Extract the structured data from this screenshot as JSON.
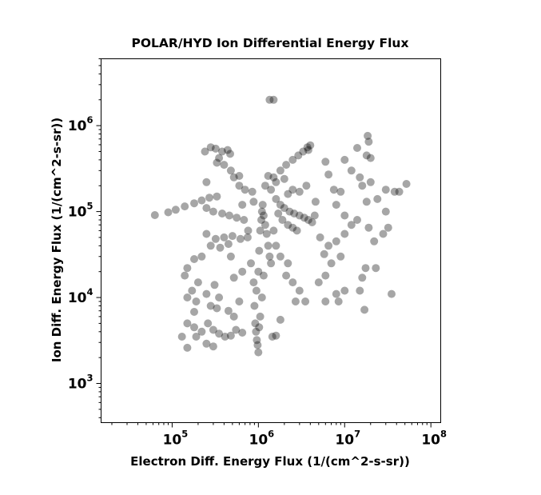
{
  "chart_data": {
    "type": "scatter",
    "title": "POLAR/HYD  Ion Differential Energy Flux",
    "xlabel": "Electron Diff. Energy Flux (1/(cm^2-s-sr))",
    "ylabel": "Ion Diff. Energy Flux (1/(cm^2-s-sr))",
    "x_scale": "log",
    "y_scale": "log",
    "xlim": [
      15000,
      130000000
    ],
    "ylim": [
      350,
      6000000
    ],
    "x_ticks": [
      {
        "base": "10",
        "exp": "5",
        "value": 100000
      },
      {
        "base": "10",
        "exp": "6",
        "value": 1000000
      },
      {
        "base": "10",
        "exp": "7",
        "value": 10000000
      },
      {
        "base": "10",
        "exp": "8",
        "value": 100000000
      }
    ],
    "y_ticks": [
      {
        "base": "10",
        "exp": "3",
        "value": 1000
      },
      {
        "base": "10",
        "exp": "4",
        "value": 10000
      },
      {
        "base": "10",
        "exp": "5",
        "value": 100000
      },
      {
        "base": "10",
        "exp": "6",
        "value": 1000000
      }
    ],
    "grid": false,
    "marker_color": "#000000",
    "marker_alpha": 0.35,
    "points": [
      [
        63000,
        91000
      ],
      [
        90000,
        98000
      ],
      [
        110000,
        105000
      ],
      [
        140000,
        115000
      ],
      [
        180000,
        125000
      ],
      [
        220000,
        135000
      ],
      [
        270000,
        145000
      ],
      [
        330000,
        150000
      ],
      [
        250000,
        110000
      ],
      [
        300000,
        100000
      ],
      [
        380000,
        95000
      ],
      [
        460000,
        90000
      ],
      [
        560000,
        85000
      ],
      [
        680000,
        80000
      ],
      [
        240000,
        500000
      ],
      [
        280000,
        560000
      ],
      [
        320000,
        540000
      ],
      [
        380000,
        500000
      ],
      [
        440000,
        520000
      ],
      [
        470000,
        470000
      ],
      [
        350000,
        420000
      ],
      [
        400000,
        350000
      ],
      [
        480000,
        300000
      ],
      [
        520000,
        250000
      ],
      [
        600000,
        200000
      ],
      [
        330000,
        370000
      ],
      [
        250000,
        220000
      ],
      [
        250000,
        55000
      ],
      [
        320000,
        48000
      ],
      [
        400000,
        50000
      ],
      [
        500000,
        52000
      ],
      [
        620000,
        48000
      ],
      [
        750000,
        50000
      ],
      [
        280000,
        40000
      ],
      [
        360000,
        38000
      ],
      [
        450000,
        42000
      ],
      [
        180000,
        28000
      ],
      [
        220000,
        30000
      ],
      [
        150000,
        22000
      ],
      [
        140000,
        18000
      ],
      [
        200000,
        15000
      ],
      [
        170000,
        12000
      ],
      [
        150000,
        10000
      ],
      [
        190000,
        9000
      ],
      [
        250000,
        11000
      ],
      [
        310000,
        14000
      ],
      [
        350000,
        10000
      ],
      [
        280000,
        8000
      ],
      [
        330000,
        7500
      ],
      [
        450000,
        7000
      ],
      [
        520000,
        6000
      ],
      [
        600000,
        9000
      ],
      [
        150000,
        5000
      ],
      [
        180000,
        4500
      ],
      [
        220000,
        4000
      ],
      [
        260000,
        5000
      ],
      [
        300000,
        4200
      ],
      [
        350000,
        3800
      ],
      [
        410000,
        3500
      ],
      [
        480000,
        3600
      ],
      [
        550000,
        4200
      ],
      [
        650000,
        3900
      ],
      [
        150000,
        2600
      ],
      [
        190000,
        3500
      ],
      [
        250000,
        2900
      ],
      [
        300000,
        2700
      ],
      [
        130000,
        3500
      ],
      [
        180000,
        6800
      ],
      [
        650000,
        20000
      ],
      [
        520000,
        17000
      ],
      [
        480000,
        30000
      ],
      [
        760000,
        60000
      ],
      [
        820000,
        25000
      ],
      [
        880000,
        15000
      ],
      [
        900000,
        8000
      ],
      [
        920000,
        5000
      ],
      [
        940000,
        4000
      ],
      [
        960000,
        3200
      ],
      [
        980000,
        2800
      ],
      [
        1000000,
        2300
      ],
      [
        950000,
        12000
      ],
      [
        1000000,
        20000
      ],
      [
        1020000,
        35000
      ],
      [
        1050000,
        60000
      ],
      [
        1080000,
        80000
      ],
      [
        1100000,
        100000
      ],
      [
        1120000,
        120000
      ],
      [
        1150000,
        90000
      ],
      [
        1200000,
        70000
      ],
      [
        1250000,
        55000
      ],
      [
        1300000,
        40000
      ],
      [
        1350000,
        30000
      ],
      [
        1400000,
        25000
      ],
      [
        1150000,
        18000
      ],
      [
        1100000,
        10000
      ],
      [
        1050000,
        6000
      ],
      [
        1020000,
        4500
      ],
      [
        1200000,
        200000
      ],
      [
        1500000,
        250000
      ],
      [
        1800000,
        300000
      ],
      [
        2100000,
        350000
      ],
      [
        2500000,
        400000
      ],
      [
        2900000,
        450000
      ],
      [
        3300000,
        500000
      ],
      [
        3700000,
        560000
      ],
      [
        4000000,
        590000
      ],
      [
        3800000,
        520000
      ],
      [
        1600000,
        220000
      ],
      [
        1400000,
        180000
      ],
      [
        1350000,
        2000000
      ],
      [
        1500000,
        2000000
      ],
      [
        1600000,
        140000
      ],
      [
        1800000,
        120000
      ],
      [
        2000000,
        110000
      ],
      [
        2300000,
        100000
      ],
      [
        2600000,
        95000
      ],
      [
        3000000,
        90000
      ],
      [
        3400000,
        85000
      ],
      [
        3800000,
        80000
      ],
      [
        4200000,
        75000
      ],
      [
        1700000,
        95000
      ],
      [
        1900000,
        80000
      ],
      [
        2200000,
        70000
      ],
      [
        2500000,
        65000
      ],
      [
        2800000,
        60000
      ],
      [
        1500000,
        60000
      ],
      [
        1600000,
        40000
      ],
      [
        1800000,
        30000
      ],
      [
        2200000,
        25000
      ],
      [
        2500000,
        15000
      ],
      [
        3000000,
        12000
      ],
      [
        3500000,
        9000
      ],
      [
        2100000,
        18000
      ],
      [
        2700000,
        9000
      ],
      [
        1800000,
        5500
      ],
      [
        1600000,
        3600
      ],
      [
        1450000,
        3500
      ],
      [
        2200000,
        160000
      ],
      [
        2500000,
        180000
      ],
      [
        3000000,
        170000
      ],
      [
        3600000,
        200000
      ],
      [
        2000000,
        240000
      ],
      [
        1300000,
        260000
      ],
      [
        600000,
        260000
      ],
      [
        700000,
        180000
      ],
      [
        850000,
        170000
      ],
      [
        650000,
        120000
      ],
      [
        880000,
        130000
      ],
      [
        6000000,
        380000
      ],
      [
        6500000,
        270000
      ],
      [
        7500000,
        180000
      ],
      [
        9000000,
        170000
      ],
      [
        10000000,
        400000
      ],
      [
        12000000,
        300000
      ],
      [
        15000000,
        250000
      ],
      [
        18000000,
        450000
      ],
      [
        18500000,
        760000
      ],
      [
        19000000,
        650000
      ],
      [
        20000000,
        420000
      ],
      [
        14000000,
        550000
      ],
      [
        16000000,
        200000
      ],
      [
        20000000,
        220000
      ],
      [
        24000000,
        140000
      ],
      [
        30000000,
        180000
      ],
      [
        38000000,
        170000
      ],
      [
        43000000,
        170000
      ],
      [
        52000000,
        210000
      ],
      [
        30000000,
        100000
      ],
      [
        18000000,
        130000
      ],
      [
        14000000,
        80000
      ],
      [
        19000000,
        65000
      ],
      [
        22000000,
        45000
      ],
      [
        28000000,
        55000
      ],
      [
        32000000,
        65000
      ],
      [
        12000000,
        70000
      ],
      [
        10000000,
        55000
      ],
      [
        8000000,
        45000
      ],
      [
        6500000,
        40000
      ],
      [
        5800000,
        32000
      ],
      [
        5200000,
        50000
      ],
      [
        4500000,
        90000
      ],
      [
        4600000,
        130000
      ],
      [
        8000000,
        120000
      ],
      [
        10000000,
        90000
      ],
      [
        7000000,
        25000
      ],
      [
        9000000,
        30000
      ],
      [
        6000000,
        18000
      ],
      [
        5000000,
        15000
      ],
      [
        8000000,
        11000
      ],
      [
        10000000,
        12000
      ],
      [
        8500000,
        9000
      ],
      [
        6000000,
        9000
      ],
      [
        15000000,
        12000
      ],
      [
        17000000,
        7200
      ],
      [
        16000000,
        17000
      ],
      [
        17500000,
        22000
      ],
      [
        23000000,
        22000
      ],
      [
        35000000,
        11000
      ]
    ]
  }
}
